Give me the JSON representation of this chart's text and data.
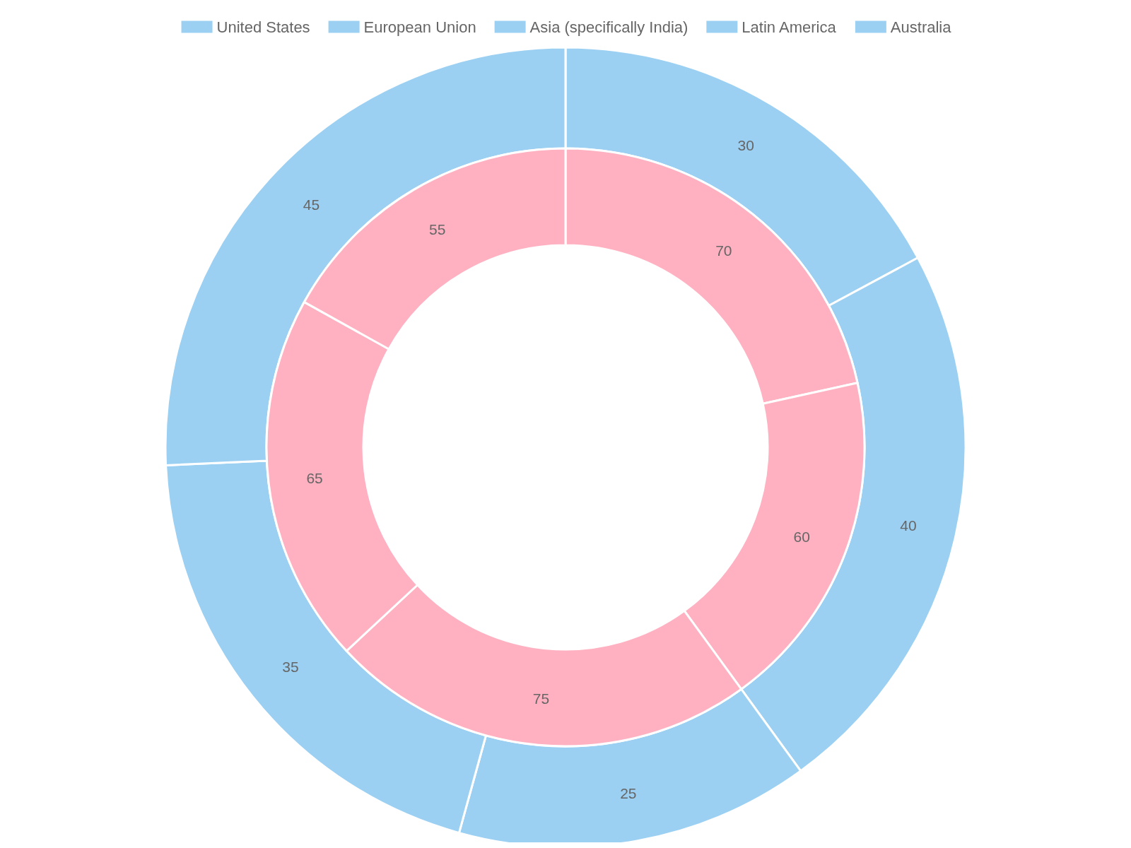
{
  "chart_data": {
    "type": "donut",
    "categories": [
      "United States",
      "European Union",
      "Asia (specifically India)",
      "Latin America",
      "Australia"
    ],
    "series": [
      {
        "color": "#9bd0f3",
        "values": [
          30,
          40,
          25,
          35,
          45
        ]
      },
      {
        "color": "#ffb1c1",
        "values": [
          70,
          60,
          75,
          65,
          55
        ]
      }
    ],
    "data_labels": true,
    "legend": "top"
  }
}
